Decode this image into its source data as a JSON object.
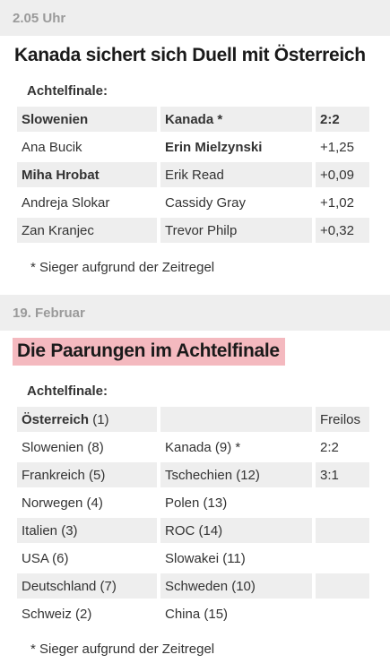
{
  "section1": {
    "time": "2.05 Uhr",
    "headline": "Kanada sichert sich Duell mit Österreich",
    "subheading": "Achtelfinale:",
    "header": [
      "Slowenien",
      "Kanada *",
      "2:2"
    ],
    "rows": [
      [
        "Ana Bucik",
        "Erin Mielzynski",
        "+1,25"
      ],
      [
        "Miha Hrobat",
        "Erik Read",
        "+0,09"
      ],
      [
        "Andreja Slokar",
        "Cassidy Gray",
        "+1,02"
      ],
      [
        "Zan Kranjec",
        "Trevor Philp",
        "+0,32"
      ]
    ],
    "footnote": "* Sieger aufgrund der Zeitregel"
  },
  "section2": {
    "date": "19. Februar",
    "headline": "Die Paarungen im Achtelfinale",
    "subheading": "Achtelfinale:",
    "header": {
      "team": "Österreich",
      "seed": "(1)",
      "opponent": "",
      "result": "Freilos"
    },
    "rows": [
      [
        "Slowenien (8)",
        "Kanada (9) *",
        "2:2"
      ],
      [
        "Frankreich (5)",
        "Tschechien (12)",
        "3:1"
      ],
      [
        "Norwegen (4)",
        "Polen (13)",
        ""
      ],
      [
        "Italien (3)",
        "ROC (14)",
        ""
      ],
      [
        "USA (6)",
        "Slowakei (11)",
        ""
      ],
      [
        "Deutschland (7)",
        "Schweden (10)",
        ""
      ],
      [
        "Schweiz (2)",
        "China (15)",
        ""
      ]
    ],
    "footnote": "* Sieger aufgrund der Zeitregel"
  }
}
